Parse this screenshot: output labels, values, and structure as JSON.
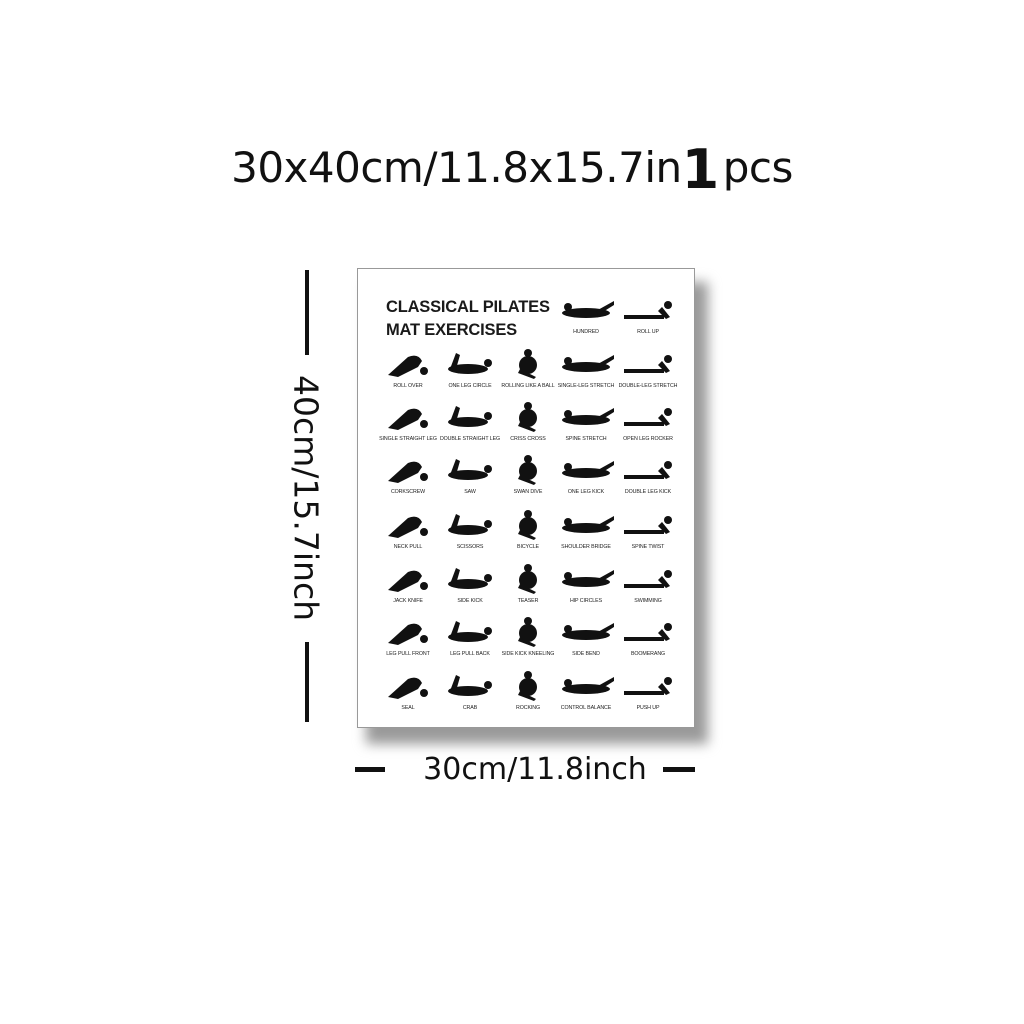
{
  "headline": {
    "size": "30x40cm/11.8x15.7in",
    "qty": "1",
    "unit": "pcs"
  },
  "poster": {
    "title_line1": "CLASSICAL PILATES",
    "title_line2": "MAT EXERCISES",
    "exercises": [
      "HUNDRED",
      "ROLL UP",
      "ROLL OVER",
      "ONE LEG CIRCLE",
      "ROLLING LIKE A BALL",
      "SINGLE-LEG STRETCH",
      "DOUBLE-LEG STRETCH",
      "SINGLE STRAIGHT LEG",
      "DOUBLE STRAIGHT LEG",
      "CRISS CROSS",
      "SPINE STRETCH",
      "OPEN LEG ROCKER",
      "CORKSCREW",
      "SAW",
      "SWAN DIVE",
      "ONE LEG KICK",
      "DOUBLE LEG KICK",
      "NECK PULL",
      "SCISSORS",
      "BICYCLE",
      "SHOULDER BRIDGE",
      "SPINE TWIST",
      "JACK KNIFE",
      "SIDE KICK",
      "TEASER",
      "HIP CIRCLES",
      "SWIMMING",
      "LEG PULL FRONT",
      "LEG PULL BACK",
      "SIDE KICK KNEELING",
      "SIDE BEND",
      "BOOMERANG",
      "SEAL",
      "CRAB",
      "ROCKING",
      "CONTROL BALANCE",
      "PUSH UP"
    ]
  },
  "dimensions": {
    "height_label": "40cm/15.7inch",
    "width_label": "30cm/11.8inch",
    "tiny_mark": "45"
  }
}
